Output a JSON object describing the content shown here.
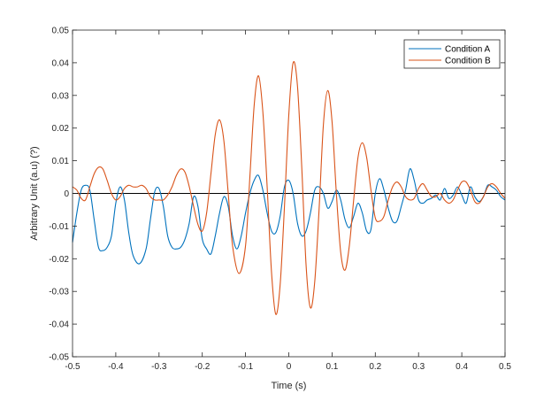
{
  "chart_data": {
    "type": "line",
    "title": "",
    "xlabel": "Time (s)",
    "ylabel": "Arbitrary Unit (a.u) (?)",
    "xlim": [
      -0.5,
      0.5
    ],
    "ylim": [
      -0.05,
      0.05
    ],
    "xticks": [
      -0.5,
      -0.4,
      -0.3,
      -0.2,
      -0.1,
      0,
      0.1,
      0.2,
      0.3,
      0.4,
      0.5
    ],
    "yticks": [
      -0.05,
      -0.04,
      -0.03,
      -0.02,
      -0.01,
      0,
      0.01,
      0.02,
      0.03,
      0.04,
      0.05
    ],
    "xtick_labels": [
      "-0.5",
      "-0.4",
      "-0.3",
      "-0.2",
      "-0.1",
      "0",
      "0.1",
      "0.2",
      "0.3",
      "0.4",
      "0.5"
    ],
    "ytick_labels": [
      "-0.05",
      "-0.04",
      "-0.03",
      "-0.02",
      "-0.01",
      "0",
      "0.01",
      "0.02",
      "0.03",
      "0.04",
      "0.05"
    ],
    "grid": false,
    "legend_position": "top-right",
    "reference_line": {
      "y": 0,
      "color": "#000000"
    },
    "series": [
      {
        "name": "Condition A",
        "color": "#0072BD",
        "points": [
          [
            -0.5,
            -0.015
          ],
          [
            -0.49,
            -0.006
          ],
          [
            -0.48,
            0.001
          ],
          [
            -0.47,
            0.0025
          ],
          [
            -0.46,
            0.001
          ],
          [
            -0.45,
            -0.008
          ],
          [
            -0.44,
            -0.0165
          ],
          [
            -0.43,
            -0.0175
          ],
          [
            -0.42,
            -0.0165
          ],
          [
            -0.41,
            -0.013
          ],
          [
            -0.4,
            -0.003
          ],
          [
            -0.39,
            0.002
          ],
          [
            -0.38,
            -0.002
          ],
          [
            -0.37,
            -0.012
          ],
          [
            -0.36,
            -0.019
          ],
          [
            -0.345,
            -0.0215
          ],
          [
            -0.33,
            -0.017
          ],
          [
            -0.32,
            -0.008
          ],
          [
            -0.31,
            0.0005
          ],
          [
            -0.3,
            0.0015
          ],
          [
            -0.29,
            -0.004
          ],
          [
            -0.28,
            -0.013
          ],
          [
            -0.27,
            -0.0165
          ],
          [
            -0.26,
            -0.017
          ],
          [
            -0.25,
            -0.0165
          ],
          [
            -0.24,
            -0.014
          ],
          [
            -0.23,
            -0.009
          ],
          [
            -0.22,
            -0.001
          ],
          [
            -0.21,
            -0.004
          ],
          [
            -0.2,
            -0.014
          ],
          [
            -0.19,
            -0.017
          ],
          [
            -0.18,
            -0.0185
          ],
          [
            -0.17,
            -0.013
          ],
          [
            -0.16,
            -0.006
          ],
          [
            -0.15,
            -0.001
          ],
          [
            -0.14,
            -0.004
          ],
          [
            -0.13,
            -0.013
          ],
          [
            -0.12,
            -0.017
          ],
          [
            -0.11,
            -0.013
          ],
          [
            -0.1,
            -0.006
          ],
          [
            -0.09,
            0.0
          ],
          [
            -0.08,
            0.004
          ],
          [
            -0.07,
            0.0055
          ],
          [
            -0.06,
            0.001
          ],
          [
            -0.05,
            -0.006
          ],
          [
            -0.04,
            -0.0115
          ],
          [
            -0.03,
            -0.012
          ],
          [
            -0.02,
            -0.007
          ],
          [
            -0.01,
            0.002
          ],
          [
            0.0,
            0.004
          ],
          [
            0.01,
            0.0
          ],
          [
            0.02,
            -0.009
          ],
          [
            0.03,
            -0.013
          ],
          [
            0.04,
            -0.0115
          ],
          [
            0.05,
            -0.006
          ],
          [
            0.06,
            0.001
          ],
          [
            0.07,
            0.002
          ],
          [
            0.08,
            0.0
          ],
          [
            0.09,
            -0.0045
          ],
          [
            0.1,
            -0.0025
          ],
          [
            0.11,
            0.001
          ],
          [
            0.12,
            -0.002
          ],
          [
            0.13,
            -0.008
          ],
          [
            0.14,
            -0.0105
          ],
          [
            0.15,
            -0.007
          ],
          [
            0.16,
            -0.003
          ],
          [
            0.17,
            -0.006
          ],
          [
            0.18,
            -0.0115
          ],
          [
            0.19,
            -0.011
          ],
          [
            0.2,
            0.0
          ],
          [
            0.21,
            0.0045
          ],
          [
            0.22,
            0.001
          ],
          [
            0.23,
            -0.0045
          ],
          [
            0.24,
            -0.0085
          ],
          [
            0.25,
            -0.0085
          ],
          [
            0.26,
            -0.004
          ],
          [
            0.27,
            0.001
          ],
          [
            0.28,
            0.0075
          ],
          [
            0.29,
            0.004
          ],
          [
            0.3,
            -0.002
          ],
          [
            0.31,
            -0.003
          ],
          [
            0.32,
            -0.002
          ],
          [
            0.33,
            -0.0015
          ],
          [
            0.34,
            -0.0005
          ],
          [
            0.35,
            -0.002
          ],
          [
            0.36,
            0.0015
          ],
          [
            0.37,
            -0.0015
          ],
          [
            0.38,
            -0.0005
          ],
          [
            0.39,
            0.002
          ],
          [
            0.4,
            -0.0005
          ],
          [
            0.41,
            -0.003
          ],
          [
            0.42,
            0.002
          ],
          [
            0.43,
            -0.001
          ],
          [
            0.44,
            -0.0025
          ],
          [
            0.45,
            -0.001
          ],
          [
            0.46,
            0.0025
          ],
          [
            0.47,
            0.002
          ],
          [
            0.48,
            0.001
          ],
          [
            0.49,
            -0.001
          ],
          [
            0.5,
            -0.002
          ]
        ]
      },
      {
        "name": "Condition B",
        "color": "#D95319",
        "points": [
          [
            -0.5,
            0.002
          ],
          [
            -0.49,
            0.001
          ],
          [
            -0.48,
            -0.0015
          ],
          [
            -0.47,
            -0.002
          ],
          [
            -0.46,
            0.002
          ],
          [
            -0.45,
            0.006
          ],
          [
            -0.44,
            0.008
          ],
          [
            -0.43,
            0.0075
          ],
          [
            -0.42,
            0.004
          ],
          [
            -0.41,
            0.0
          ],
          [
            -0.4,
            -0.002
          ],
          [
            -0.39,
            -0.001
          ],
          [
            -0.38,
            0.0015
          ],
          [
            -0.37,
            0.0025
          ],
          [
            -0.36,
            0.002
          ],
          [
            -0.35,
            0.002
          ],
          [
            -0.34,
            0.0025
          ],
          [
            -0.33,
            0.0015
          ],
          [
            -0.32,
            -0.001
          ],
          [
            -0.31,
            -0.002
          ],
          [
            -0.3,
            -0.002
          ],
          [
            -0.29,
            -0.002
          ],
          [
            -0.28,
            -0.0005
          ],
          [
            -0.27,
            0.002
          ],
          [
            -0.26,
            0.0055
          ],
          [
            -0.25,
            0.0075
          ],
          [
            -0.24,
            0.0065
          ],
          [
            -0.23,
            0.002
          ],
          [
            -0.22,
            -0.004
          ],
          [
            -0.21,
            -0.0095
          ],
          [
            -0.2,
            -0.0115
          ],
          [
            -0.19,
            -0.006
          ],
          [
            -0.18,
            0.006
          ],
          [
            -0.17,
            0.018
          ],
          [
            -0.16,
            0.0225
          ],
          [
            -0.15,
            0.016
          ],
          [
            -0.14,
            0.0
          ],
          [
            -0.13,
            -0.016
          ],
          [
            -0.115,
            -0.0245
          ],
          [
            -0.1,
            -0.016
          ],
          [
            -0.09,
            0.005
          ],
          [
            -0.08,
            0.027
          ],
          [
            -0.07,
            0.036
          ],
          [
            -0.06,
            0.025
          ],
          [
            -0.05,
            0.002
          ],
          [
            -0.04,
            -0.024
          ],
          [
            -0.03,
            -0.037
          ],
          [
            -0.02,
            -0.028
          ],
          [
            -0.01,
            -0.004
          ],
          [
            0.0,
            0.024
          ],
          [
            0.01,
            0.04
          ],
          [
            0.02,
            0.033
          ],
          [
            0.03,
            0.008
          ],
          [
            0.04,
            -0.022
          ],
          [
            0.05,
            -0.035
          ],
          [
            0.06,
            -0.027
          ],
          [
            0.07,
            -0.005
          ],
          [
            0.08,
            0.021
          ],
          [
            0.09,
            0.0315
          ],
          [
            0.1,
            0.022
          ],
          [
            0.11,
            0.0
          ],
          [
            0.12,
            -0.018
          ],
          [
            0.13,
            -0.0235
          ],
          [
            0.14,
            -0.016
          ],
          [
            0.15,
            -0.002
          ],
          [
            0.16,
            0.011
          ],
          [
            0.17,
            0.0155
          ],
          [
            0.18,
            0.011
          ],
          [
            0.19,
            0.001
          ],
          [
            0.2,
            -0.0075
          ],
          [
            0.21,
            -0.0085
          ],
          [
            0.22,
            -0.007
          ],
          [
            0.23,
            -0.002
          ],
          [
            0.24,
            0.002
          ],
          [
            0.25,
            0.0035
          ],
          [
            0.26,
            0.002
          ],
          [
            0.27,
            -0.001
          ],
          [
            0.28,
            -0.002
          ],
          [
            0.29,
            -0.0015
          ],
          [
            0.3,
            0.0015
          ],
          [
            0.31,
            0.003
          ],
          [
            0.32,
            0.001
          ],
          [
            0.33,
            -0.001
          ],
          [
            0.34,
            -0.001
          ],
          [
            0.35,
            0.0
          ],
          [
            0.36,
            -0.002
          ],
          [
            0.37,
            -0.003
          ],
          [
            0.38,
            -0.002
          ],
          [
            0.39,
            0.001
          ],
          [
            0.4,
            0.0035
          ],
          [
            0.41,
            0.0035
          ],
          [
            0.42,
            0.001
          ],
          [
            0.43,
            -0.0025
          ],
          [
            0.44,
            -0.003
          ],
          [
            0.45,
            -0.001
          ],
          [
            0.46,
            0.002
          ],
          [
            0.47,
            0.003
          ],
          [
            0.48,
            0.002
          ],
          [
            0.49,
            0.0
          ],
          [
            0.5,
            -0.0015
          ]
        ]
      }
    ]
  }
}
